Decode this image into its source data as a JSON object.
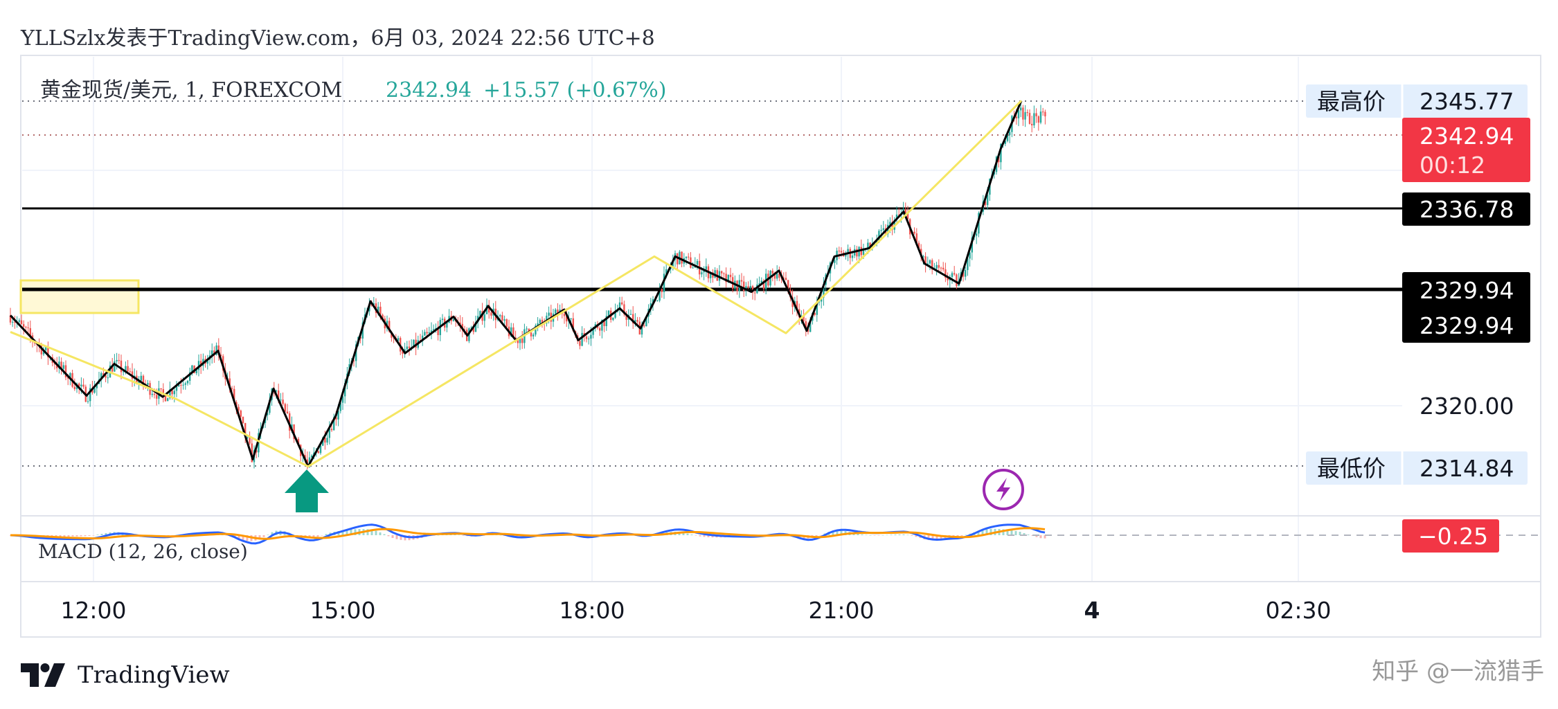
{
  "header": {
    "publish_line": "YLLSzlx发表于TradingView.com，6月 03, 2024 22:56 UTC+8"
  },
  "legend": {
    "symbol": "黄金现货/美元, 1, FOREXCOM",
    "price": "2342.94",
    "change": "+15.57 (+0.67%)"
  },
  "colors": {
    "up": "#26a69a",
    "down": "#ef5350",
    "pattern_black": "#000000",
    "pattern_yellow": "#f5e663",
    "zone_fill": "#fff9d6",
    "zone_border": "#f5e663",
    "arrow": "#089981",
    "lightning": "#9c27b0",
    "price_tag_red": "#f23645",
    "level_tag_black": "#000000",
    "hilo_tag_bg": "#e3effd",
    "macd_line": "#2962ff",
    "signal_line": "#ff9800"
  },
  "labels": {
    "high": {
      "name": "最高价",
      "value": "2345.77"
    },
    "low": {
      "name": "最低价",
      "value": "2314.84"
    },
    "last": {
      "value": "2342.94",
      "countdown": "00:12"
    },
    "levels": [
      "2336.78",
      "2329.94",
      "2329.94"
    ],
    "tick": "2320.00",
    "macd_value": "−0.25",
    "macd_title": "MACD (12, 26, close)"
  },
  "icons": {
    "arrow": "up-arrow-icon",
    "event": "lightning-icon",
    "logo": "tradingview-logo-icon"
  },
  "footer": {
    "brand": "TradingView",
    "watermark": "知乎 @一流猎手"
  },
  "chart_data": {
    "type": "line",
    "title": "黄金现货/美元, 1, FOREXCOM",
    "x_ticks": [
      "12:00",
      "15:00",
      "18:00",
      "21:00",
      "4",
      "02:30"
    ],
    "y_tick_labels": [
      "2320.00"
    ],
    "ylim": [
      2308,
      2348
    ],
    "price_lines": {
      "high": 2345.77,
      "low": 2314.84,
      "last": 2342.94
    },
    "horizontal_levels": [
      2336.78,
      2329.94
    ],
    "series": [
      {
        "points": [
          {
            "x": "11:00",
            "y": 2327.6
          },
          {
            "x": "11:55",
            "y": 2320.8
          },
          {
            "x": "12:15",
            "y": 2323.5
          },
          {
            "x": "12:50",
            "y": 2320.7
          },
          {
            "x": "13:30",
            "y": 2324.6
          },
          {
            "x": "13:55",
            "y": 2315.4
          },
          {
            "x": "14:10",
            "y": 2321.4
          },
          {
            "x": "14:35",
            "y": 2314.8
          },
          {
            "x": "14:55",
            "y": 2319.1
          },
          {
            "x": "15:20",
            "y": 2328.8
          },
          {
            "x": "15:45",
            "y": 2324.4
          },
          {
            "x": "16:20",
            "y": 2327.5
          },
          {
            "x": "16:30",
            "y": 2325.9
          },
          {
            "x": "16:45",
            "y": 2328.4
          },
          {
            "x": "17:05",
            "y": 2325.5
          },
          {
            "x": "17:40",
            "y": 2328.1
          },
          {
            "x": "17:50",
            "y": 2325.5
          },
          {
            "x": "18:20",
            "y": 2328.2
          },
          {
            "x": "18:35",
            "y": 2326.5
          },
          {
            "x": "18:45",
            "y": 2328.8
          },
          {
            "x": "19:00",
            "y": 2332.6
          },
          {
            "x": "19:55",
            "y": 2329.6
          },
          {
            "x": "20:15",
            "y": 2331.4
          },
          {
            "x": "20:35",
            "y": 2326.3
          },
          {
            "x": "20:55",
            "y": 2332.6
          },
          {
            "x": "21:20",
            "y": 2333.3
          },
          {
            "x": "21:45",
            "y": 2336.4
          },
          {
            "x": "22:00",
            "y": 2332.0
          },
          {
            "x": "22:25",
            "y": 2330.3
          },
          {
            "x": "22:55",
            "y": 2341.7
          },
          {
            "x": "23:10",
            "y": 2345.8
          }
        ]
      },
      {
        "points": [
          {
            "x": "11:00",
            "y": 2326.2
          },
          {
            "x": "13:00",
            "y": 2320.5
          },
          {
            "x": "14:35",
            "y": 2314.8
          },
          {
            "x": "18:45",
            "y": 2332.6
          },
          {
            "x": "20:20",
            "y": 2326.1
          },
          {
            "x": "23:10",
            "y": 2345.8
          }
        ]
      }
    ],
    "marker": {
      "x": "14:35",
      "shape": "up-arrow"
    },
    "event": {
      "x": "22:55",
      "icon": "lightning"
    },
    "indicator": {
      "name": "MACD (12, 26, close)",
      "last_value": -0.25
    }
  }
}
